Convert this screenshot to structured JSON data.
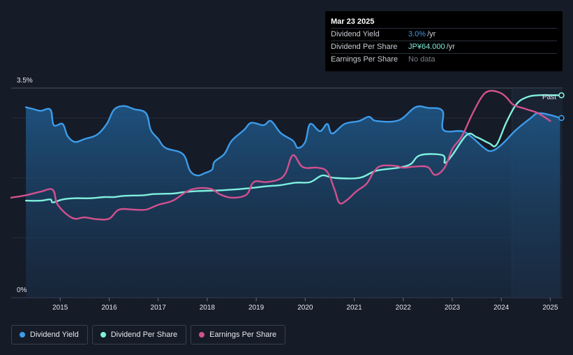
{
  "tooltip": {
    "date": "Mar 23 2025",
    "rows": [
      {
        "label": "Dividend Yield",
        "value": "3.0%",
        "unit": "/yr",
        "color": "#3d9be9"
      },
      {
        "label": "Dividend Per Share",
        "value": "JP¥64.000",
        "unit": "/yr",
        "color": "#7ff0de"
      },
      {
        "label": "Earnings Per Share",
        "value": "No data",
        "unit": "",
        "color": "#7c7f87"
      }
    ]
  },
  "past_label": "Past",
  "legend": [
    {
      "label": "Dividend Yield",
      "color": "#3d9be9"
    },
    {
      "label": "Dividend Per Share",
      "color": "#7ff0de"
    },
    {
      "label": "Earnings Per Share",
      "color": "#d2518e"
    }
  ],
  "chart_data": {
    "type": "line",
    "title": "",
    "xlabel": "",
    "ylabel": "",
    "xlim": [
      2014.0,
      2025.25
    ],
    "ylim": [
      0,
      3.5
    ],
    "y_ticks": [
      "0%",
      "3.5%"
    ],
    "x_ticks": [
      "2015",
      "2016",
      "2017",
      "2018",
      "2019",
      "2020",
      "2021",
      "2022",
      "2023",
      "2024",
      "2025"
    ],
    "series": [
      {
        "name": "Dividend Yield",
        "unit": "%",
        "color": "#3d9be9",
        "points": [
          [
            2014.3,
            3.18
          ],
          [
            2014.45,
            3.15
          ],
          [
            2014.6,
            3.12
          ],
          [
            2014.8,
            3.14
          ],
          [
            2014.87,
            2.88
          ],
          [
            2015.05,
            2.9
          ],
          [
            2015.15,
            2.7
          ],
          [
            2015.3,
            2.6
          ],
          [
            2015.5,
            2.65
          ],
          [
            2015.75,
            2.72
          ],
          [
            2015.95,
            2.9
          ],
          [
            2016.1,
            3.14
          ],
          [
            2016.3,
            3.2
          ],
          [
            2016.5,
            3.15
          ],
          [
            2016.75,
            3.08
          ],
          [
            2016.85,
            2.8
          ],
          [
            2017.0,
            2.65
          ],
          [
            2017.15,
            2.5
          ],
          [
            2017.5,
            2.4
          ],
          [
            2017.65,
            2.12
          ],
          [
            2017.8,
            2.04
          ],
          [
            2017.95,
            2.08
          ],
          [
            2018.1,
            2.14
          ],
          [
            2018.15,
            2.27
          ],
          [
            2018.35,
            2.4
          ],
          [
            2018.5,
            2.62
          ],
          [
            2018.75,
            2.8
          ],
          [
            2018.9,
            2.92
          ],
          [
            2019.15,
            2.88
          ],
          [
            2019.3,
            2.95
          ],
          [
            2019.5,
            2.75
          ],
          [
            2019.75,
            2.62
          ],
          [
            2019.85,
            2.5
          ],
          [
            2020.0,
            2.6
          ],
          [
            2020.1,
            2.9
          ],
          [
            2020.3,
            2.78
          ],
          [
            2020.45,
            2.9
          ],
          [
            2020.55,
            2.74
          ],
          [
            2020.8,
            2.9
          ],
          [
            2021.1,
            2.95
          ],
          [
            2021.3,
            3.02
          ],
          [
            2021.45,
            2.95
          ],
          [
            2021.9,
            2.96
          ],
          [
            2022.25,
            3.18
          ],
          [
            2022.5,
            3.17
          ],
          [
            2022.8,
            3.12
          ],
          [
            2022.82,
            2.8
          ],
          [
            2023.2,
            2.78
          ],
          [
            2023.4,
            2.68
          ],
          [
            2023.65,
            2.5
          ],
          [
            2023.8,
            2.45
          ],
          [
            2024.0,
            2.55
          ],
          [
            2024.3,
            2.8
          ],
          [
            2024.6,
            3.0
          ],
          [
            2024.75,
            3.08
          ],
          [
            2025.0,
            3.05
          ],
          [
            2025.2,
            3.0
          ]
        ]
      },
      {
        "name": "Dividend Per Share",
        "unit": "JP¥",
        "color": "#7ff0de",
        "points": [
          [
            2014.3,
            1.62
          ],
          [
            2014.6,
            1.62
          ],
          [
            2014.8,
            1.64
          ],
          [
            2014.85,
            1.59
          ],
          [
            2015.05,
            1.64
          ],
          [
            2015.3,
            1.66
          ],
          [
            2015.6,
            1.66
          ],
          [
            2015.9,
            1.68
          ],
          [
            2016.1,
            1.68
          ],
          [
            2016.3,
            1.7
          ],
          [
            2016.7,
            1.71
          ],
          [
            2016.9,
            1.73
          ],
          [
            2017.3,
            1.74
          ],
          [
            2017.5,
            1.76
          ],
          [
            2017.8,
            1.78
          ],
          [
            2018.2,
            1.79
          ],
          [
            2018.6,
            1.81
          ],
          [
            2018.9,
            1.83
          ],
          [
            2019.2,
            1.86
          ],
          [
            2019.5,
            1.88
          ],
          [
            2019.8,
            1.92
          ],
          [
            2020.1,
            1.93
          ],
          [
            2020.35,
            2.04
          ],
          [
            2020.6,
            2.0
          ],
          [
            2021.1,
            2.0
          ],
          [
            2021.45,
            2.12
          ],
          [
            2021.9,
            2.17
          ],
          [
            2022.15,
            2.23
          ],
          [
            2022.35,
            2.38
          ],
          [
            2022.8,
            2.38
          ],
          [
            2022.85,
            2.25
          ],
          [
            2023.0,
            2.38
          ],
          [
            2023.3,
            2.72
          ],
          [
            2023.5,
            2.68
          ],
          [
            2023.75,
            2.58
          ],
          [
            2023.9,
            2.55
          ],
          [
            2024.1,
            2.92
          ],
          [
            2024.3,
            3.22
          ],
          [
            2024.5,
            3.34
          ],
          [
            2024.75,
            3.38
          ],
          [
            2025.2,
            3.38
          ]
        ]
      },
      {
        "name": "Earnings Per Share",
        "unit": "JP¥",
        "color": "#d2518e",
        "points": [
          [
            2014.0,
            1.67
          ],
          [
            2014.3,
            1.71
          ],
          [
            2014.6,
            1.77
          ],
          [
            2014.85,
            1.8
          ],
          [
            2014.95,
            1.55
          ],
          [
            2015.25,
            1.33
          ],
          [
            2015.5,
            1.34
          ],
          [
            2015.75,
            1.31
          ],
          [
            2016.0,
            1.32
          ],
          [
            2016.2,
            1.47
          ],
          [
            2016.5,
            1.47
          ],
          [
            2016.75,
            1.47
          ],
          [
            2017.0,
            1.55
          ],
          [
            2017.3,
            1.62
          ],
          [
            2017.6,
            1.78
          ],
          [
            2017.85,
            1.83
          ],
          [
            2018.1,
            1.81
          ],
          [
            2018.25,
            1.73
          ],
          [
            2018.5,
            1.67
          ],
          [
            2018.8,
            1.72
          ],
          [
            2018.95,
            1.93
          ],
          [
            2019.2,
            1.93
          ],
          [
            2019.45,
            1.97
          ],
          [
            2019.6,
            2.08
          ],
          [
            2019.75,
            2.38
          ],
          [
            2019.95,
            2.18
          ],
          [
            2020.25,
            2.17
          ],
          [
            2020.45,
            2.1
          ],
          [
            2020.6,
            1.8
          ],
          [
            2020.7,
            1.58
          ],
          [
            2020.85,
            1.63
          ],
          [
            2021.05,
            1.78
          ],
          [
            2021.25,
            1.9
          ],
          [
            2021.4,
            2.1
          ],
          [
            2021.55,
            2.2
          ],
          [
            2021.85,
            2.2
          ],
          [
            2022.0,
            2.17
          ],
          [
            2022.25,
            2.19
          ],
          [
            2022.5,
            2.18
          ],
          [
            2022.65,
            2.05
          ],
          [
            2022.85,
            2.18
          ],
          [
            2023.0,
            2.48
          ],
          [
            2023.2,
            2.7
          ],
          [
            2023.4,
            3.05
          ],
          [
            2023.6,
            3.35
          ],
          [
            2023.75,
            3.45
          ],
          [
            2023.95,
            3.43
          ],
          [
            2024.1,
            3.35
          ],
          [
            2024.25,
            3.22
          ],
          [
            2024.5,
            3.15
          ],
          [
            2024.75,
            3.08
          ],
          [
            2025.0,
            2.95
          ]
        ]
      }
    ],
    "forecast_from": 2024.22,
    "grid": true,
    "legend_position": "bottom-left"
  }
}
